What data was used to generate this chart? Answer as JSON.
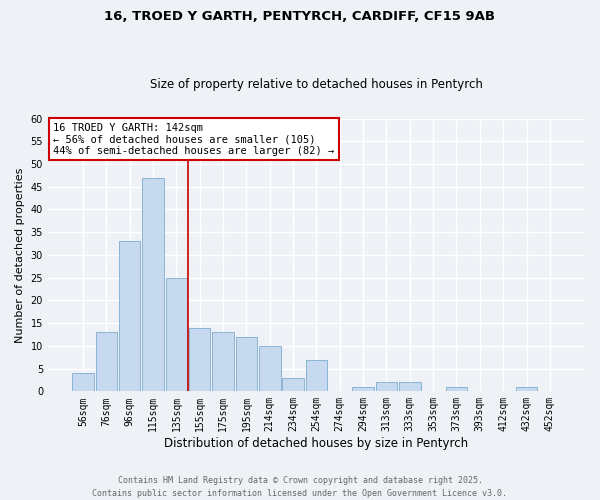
{
  "title_line1": "16, TROED Y GARTH, PENTYRCH, CARDIFF, CF15 9AB",
  "title_line2": "Size of property relative to detached houses in Pentyrch",
  "xlabel": "Distribution of detached houses by size in Pentyrch",
  "ylabel": "Number of detached properties",
  "bar_labels": [
    "56sqm",
    "76sqm",
    "96sqm",
    "115sqm",
    "135sqm",
    "155sqm",
    "175sqm",
    "195sqm",
    "214sqm",
    "234sqm",
    "254sqm",
    "274sqm",
    "294sqm",
    "313sqm",
    "333sqm",
    "353sqm",
    "373sqm",
    "393sqm",
    "412sqm",
    "432sqm",
    "452sqm"
  ],
  "bar_values": [
    4,
    13,
    33,
    47,
    25,
    14,
    13,
    12,
    10,
    3,
    7,
    0,
    1,
    2,
    2,
    0,
    1,
    0,
    0,
    1,
    0
  ],
  "bar_color": "#c6d9ee",
  "bar_edge_color": "#8ab4d4",
  "vline_x": 4.5,
  "vline_color": "#cc0000",
  "ylim": [
    0,
    60
  ],
  "yticks": [
    0,
    5,
    10,
    15,
    20,
    25,
    30,
    35,
    40,
    45,
    50,
    55,
    60
  ],
  "annotation_title": "16 TROED Y GARTH: 142sqm",
  "annotation_line1": "← 56% of detached houses are smaller (105)",
  "annotation_line2": "44% of semi-detached houses are larger (82) →",
  "annotation_box_color": "#ffffff",
  "annotation_box_edge": "#cc0000",
  "footer_line1": "Contains HM Land Registry data © Crown copyright and database right 2025.",
  "footer_line2": "Contains public sector information licensed under the Open Government Licence v3.0.",
  "background_color": "#eef2f7"
}
